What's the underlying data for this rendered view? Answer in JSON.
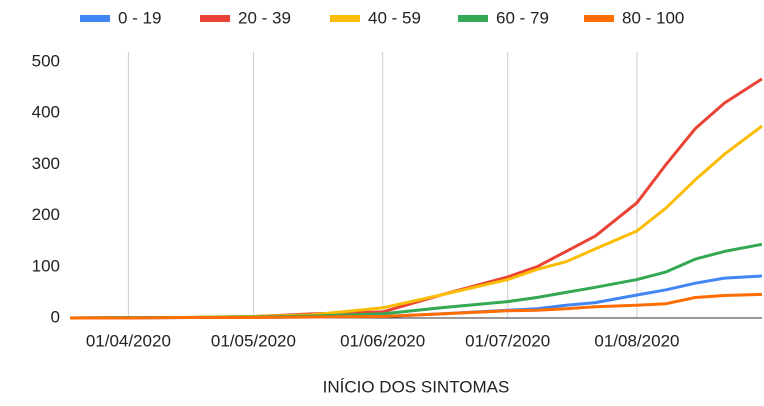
{
  "chart_data": {
    "type": "line",
    "x_label": "INÍCIO DOS SINTOMAS",
    "x": [
      "18/03/2020",
      "01/04/2020",
      "15/04/2020",
      "01/05/2020",
      "15/05/2020",
      "01/06/2020",
      "15/06/2020",
      "01/07/2020",
      "08/07/2020",
      "15/07/2020",
      "22/07/2020",
      "01/08/2020",
      "08/08/2020",
      "15/08/2020",
      "22/08/2020",
      "31/08/2020"
    ],
    "series": [
      {
        "name": "0 - 19",
        "color": "#4285f4",
        "values": [
          0,
          0,
          1,
          1,
          2,
          3,
          8,
          15,
          18,
          25,
          30,
          45,
          55,
          68,
          78,
          82
        ]
      },
      {
        "name": "20 - 39",
        "color": "#ea4335",
        "values": [
          0,
          1,
          1,
          3,
          8,
          12,
          45,
          80,
          100,
          130,
          160,
          225,
          300,
          370,
          420,
          467
        ]
      },
      {
        "name": "40 - 59",
        "color": "#fbbc04",
        "values": [
          0,
          1,
          1,
          3,
          6,
          20,
          45,
          75,
          95,
          110,
          135,
          170,
          215,
          270,
          320,
          375
        ]
      },
      {
        "name": "60 - 79",
        "color": "#34a853",
        "values": [
          0,
          1,
          1,
          2,
          4,
          8,
          20,
          32,
          40,
          50,
          60,
          75,
          90,
          115,
          130,
          144
        ]
      },
      {
        "name": "80 - 100",
        "color": "#ff6d01",
        "values": [
          0,
          0,
          1,
          1,
          2,
          3,
          8,
          14,
          15,
          18,
          22,
          25,
          28,
          40,
          44,
          46
        ]
      }
    ],
    "xlim": [
      "18/03/2020",
      "31/08/2020"
    ],
    "xticks": [
      "01/04/2020",
      "01/05/2020",
      "01/06/2020",
      "01/07/2020",
      "01/08/2020"
    ],
    "ylim": [
      0,
      500
    ],
    "yticks": [
      0,
      100,
      200,
      300,
      400,
      500
    ],
    "grid": "x",
    "legend": "top"
  }
}
